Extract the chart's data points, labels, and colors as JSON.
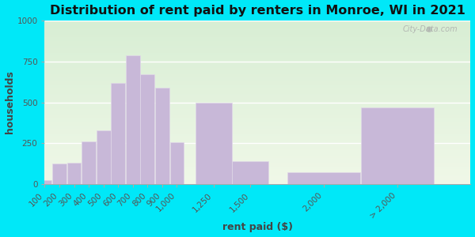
{
  "title": "Distribution of rent paid by renters in Monroe, WI in 2021",
  "xlabel": "rent paid ($)",
  "ylabel": "households",
  "bar_labels": [
    "100",
    "200",
    "300",
    "400",
    "500",
    "600",
    "700",
    "800",
    "900",
    "1,000",
    "1,250",
    "1,500",
    "2,000",
    "> 2,000"
  ],
  "bar_values": [
    25,
    125,
    130,
    260,
    330,
    620,
    785,
    670,
    590,
    255,
    500,
    140,
    75,
    470
  ],
  "bar_positions": [
    100,
    200,
    300,
    400,
    500,
    600,
    700,
    800,
    900,
    1000,
    1250,
    1500,
    2000,
    2500
  ],
  "bar_widths": [
    100,
    100,
    100,
    100,
    100,
    100,
    100,
    100,
    100,
    100,
    250,
    250,
    500,
    500
  ],
  "bar_color": "#c8b8d8",
  "bar_edge_color": "#e0d8e8",
  "ylim": [
    0,
    1000
  ],
  "yticks": [
    0,
    250,
    500,
    750,
    1000
  ],
  "xlim": [
    100,
    3000
  ],
  "background_outer": "#00e8f8",
  "background_inner": "#eaf2e0",
  "title_fontsize": 11.5,
  "axis_label_fontsize": 9,
  "tick_fontsize": 7.5,
  "watermark_text": "City-Data.com"
}
